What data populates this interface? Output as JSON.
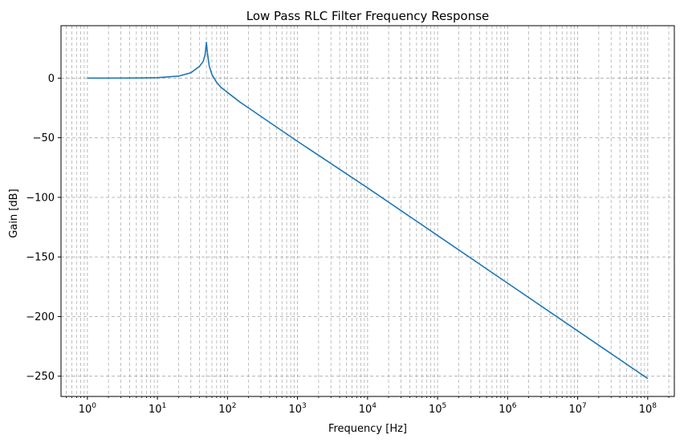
{
  "chart_data": {
    "type": "line",
    "title": "Low Pass RLC Filter Frequency Response",
    "xlabel": "Frequency [Hz]",
    "ylabel": "Gain [dB]",
    "xscale": "log",
    "xlim": [
      0.42,
      240000000
    ],
    "ylim": [
      -267,
      44
    ],
    "grid": "major and minor, dashed",
    "x_ticks": [
      {
        "value": 1,
        "mantissa": "10",
        "exp": "0"
      },
      {
        "value": 10,
        "mantissa": "10",
        "exp": "1"
      },
      {
        "value": 100,
        "mantissa": "10",
        "exp": "2"
      },
      {
        "value": 1000,
        "mantissa": "10",
        "exp": "3"
      },
      {
        "value": 10000,
        "mantissa": "10",
        "exp": "4"
      },
      {
        "value": 100000,
        "mantissa": "10",
        "exp": "5"
      },
      {
        "value": 1000000,
        "mantissa": "10",
        "exp": "6"
      },
      {
        "value": 10000000,
        "mantissa": "10",
        "exp": "7"
      },
      {
        "value": 100000000,
        "mantissa": "10",
        "exp": "8"
      }
    ],
    "y_ticks": [
      {
        "value": 0,
        "label": "0"
      },
      {
        "value": -50,
        "label": "−50"
      },
      {
        "value": -100,
        "label": "−100"
      },
      {
        "value": -150,
        "label": "−150"
      },
      {
        "value": -200,
        "label": "−200"
      },
      {
        "value": -250,
        "label": "−250"
      }
    ],
    "series": [
      {
        "color": "#1f77b4",
        "points": [
          [
            1,
            0
          ],
          [
            2,
            0.0
          ],
          [
            5,
            0.1
          ],
          [
            10,
            0.4
          ],
          [
            20,
            1.7
          ],
          [
            30,
            4.5
          ],
          [
            40,
            10
          ],
          [
            45,
            14
          ],
          [
            48,
            20
          ],
          [
            50,
            30
          ],
          [
            52,
            20
          ],
          [
            55,
            10
          ],
          [
            60,
            3
          ],
          [
            70,
            -3.5
          ],
          [
            80,
            -7.5
          ],
          [
            100,
            -12
          ],
          [
            150,
            -20
          ],
          [
            200,
            -25
          ],
          [
            500,
            -41
          ],
          [
            1000,
            -53
          ],
          [
            10000,
            -92
          ],
          [
            100000,
            -132
          ],
          [
            1000000,
            -172
          ],
          [
            10000000,
            -212
          ],
          [
            100000000,
            -252
          ]
        ]
      }
    ]
  }
}
